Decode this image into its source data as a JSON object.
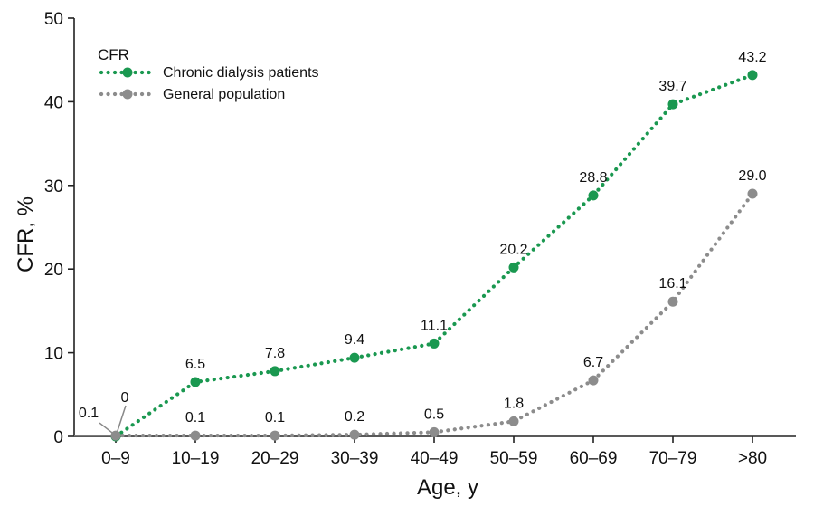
{
  "chart_data": {
    "type": "line",
    "categories": [
      "0–9",
      "10–19",
      "20–29",
      "30–39",
      "40–49",
      "50–59",
      "60–69",
      "70–79",
      ">80"
    ],
    "xlabel": "Age, y",
    "ylabel": "CFR, %",
    "ylim": [
      0,
      50
    ],
    "yticks": [
      "0",
      "10",
      "20",
      "30",
      "40",
      "50"
    ],
    "grid": false,
    "legend": {
      "title": "CFR",
      "placement": "top-left"
    },
    "series": [
      {
        "name": "Chronic dialysis patients",
        "color": "#1a9850",
        "values": [
          0,
          6.5,
          7.8,
          9.4,
          11.1,
          20.2,
          28.8,
          39.7,
          43.2
        ],
        "labels": [
          "0",
          "6.5",
          "7.8",
          "9.4",
          "11.1",
          "20.2",
          "28.8",
          "39.7",
          "43.2"
        ]
      },
      {
        "name": "General population",
        "color": "#8c8c8c",
        "values": [
          0.1,
          0.1,
          0.1,
          0.2,
          0.5,
          1.8,
          6.7,
          16.1,
          29.0
        ],
        "labels": [
          "0.1",
          "0.1",
          "0.1",
          "0.2",
          "0.5",
          "1.8",
          "6.7",
          "16.1",
          "29.0"
        ]
      }
    ]
  }
}
